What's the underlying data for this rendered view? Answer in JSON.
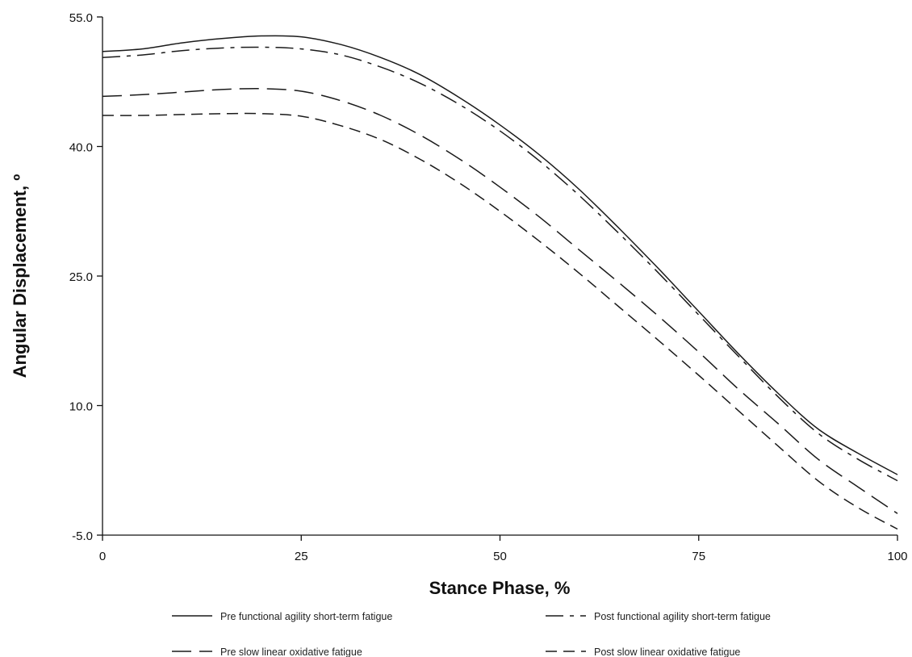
{
  "chart_data": {
    "type": "line",
    "title": "",
    "xlabel": "Stance Phase, %",
    "ylabel": "Angular Displacement, º",
    "xlim": [
      0,
      100
    ],
    "ylim": [
      -5,
      55
    ],
    "xticks": [
      "0",
      "25",
      "50",
      "75",
      "100"
    ],
    "yticks": [
      "-5.0",
      "10.0",
      "25.0",
      "40.0",
      "55.0"
    ],
    "grid": false,
    "legend_position": "bottom",
    "x": [
      0,
      5,
      10,
      15,
      20,
      25,
      30,
      35,
      40,
      45,
      50,
      55,
      60,
      65,
      70,
      75,
      80,
      85,
      90,
      95,
      100
    ],
    "series": [
      {
        "name": "Pre functional agility short-term fatigue",
        "dash": "solid",
        "values": [
          51.0,
          51.3,
          52.0,
          52.5,
          52.8,
          52.7,
          51.8,
          50.3,
          48.3,
          45.6,
          42.5,
          39.0,
          35.0,
          30.5,
          25.8,
          20.9,
          16.0,
          11.4,
          7.3,
          4.5,
          2.0
        ]
      },
      {
        "name": "Post functional agility short-term fatigue",
        "dash": "long-short",
        "values": [
          50.3,
          50.6,
          51.1,
          51.4,
          51.5,
          51.3,
          50.6,
          49.2,
          47.3,
          44.8,
          41.8,
          38.3,
          34.3,
          29.9,
          25.3,
          20.5,
          15.7,
          11.0,
          6.8,
          3.8,
          1.3
        ]
      },
      {
        "name": "Pre slow linear oxidative fatigue",
        "dash": "long",
        "values": [
          45.8,
          46.0,
          46.3,
          46.6,
          46.7,
          46.4,
          45.3,
          43.6,
          41.3,
          38.5,
          35.3,
          31.8,
          28.0,
          24.2,
          20.3,
          16.2,
          11.9,
          7.9,
          3.8,
          0.6,
          -2.5
        ]
      },
      {
        "name": "Post slow linear oxidative fatigue",
        "dash": "medium",
        "values": [
          43.6,
          43.6,
          43.7,
          43.8,
          43.8,
          43.5,
          42.4,
          40.8,
          38.5,
          35.7,
          32.5,
          29.0,
          25.3,
          21.4,
          17.5,
          13.5,
          9.4,
          5.3,
          1.3,
          -1.8,
          -4.3
        ]
      }
    ]
  }
}
